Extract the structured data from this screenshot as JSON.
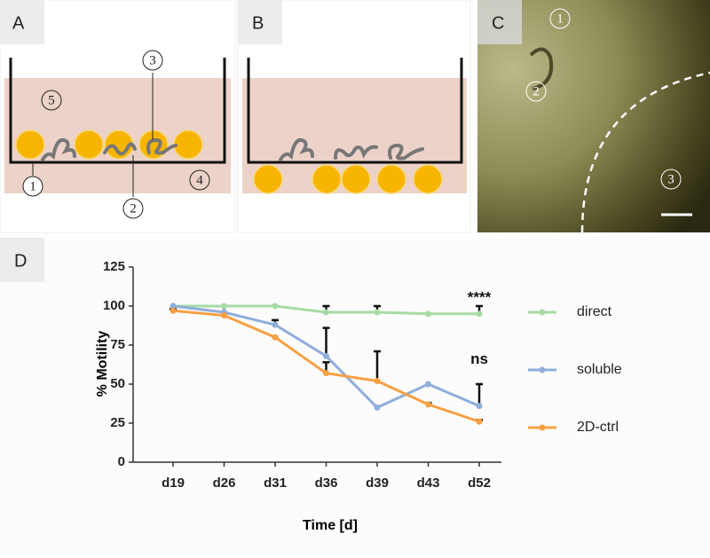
{
  "panels": {
    "a": {
      "label": "A",
      "markers": [
        "1",
        "2",
        "3",
        "4",
        "5"
      ]
    },
    "b": {
      "label": "B"
    },
    "c": {
      "label": "C",
      "markers": [
        "1",
        "2",
        "3"
      ]
    },
    "d": {
      "label": "D"
    }
  },
  "chart_data": {
    "type": "line",
    "x_label": "Time [d]",
    "y_label": "% Motility",
    "categories": [
      "d19",
      "d26",
      "d31",
      "d36",
      "d39",
      "d43",
      "d52"
    ],
    "series": [
      {
        "name": "direct",
        "color": "#a6dba4",
        "values": [
          100,
          100,
          100,
          96,
          96,
          95,
          95
        ],
        "errors": [
          null,
          null,
          null,
          4,
          4,
          null,
          5
        ]
      },
      {
        "name": "soluble",
        "color": "#8eaedb",
        "values": [
          100,
          96,
          88,
          68,
          35,
          50,
          36
        ],
        "errors": [
          null,
          4,
          3,
          18,
          null,
          null,
          14
        ]
      },
      {
        "name": "2D-ctrl",
        "color": "#f7a043",
        "values": [
          97,
          94,
          80,
          57,
          52,
          37,
          26
        ],
        "errors": [
          1,
          null,
          null,
          7,
          19,
          1,
          1
        ]
      }
    ],
    "ylim": [
      0,
      125
    ],
    "yticks": [
      0,
      25,
      50,
      75,
      100,
      125
    ],
    "annotations": [
      "****",
      "ns"
    ],
    "legend": "right"
  }
}
